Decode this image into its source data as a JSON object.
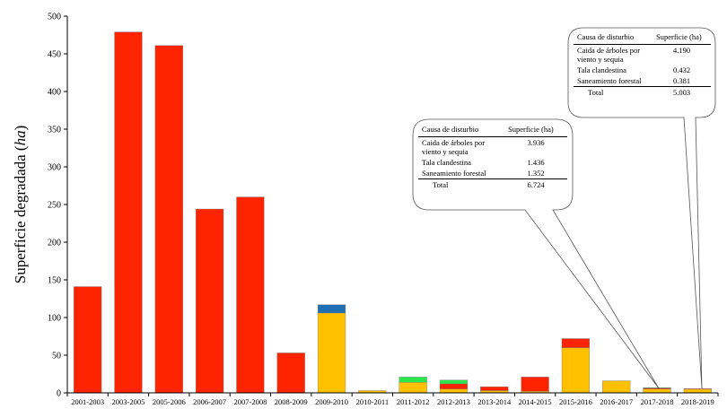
{
  "chart_data": {
    "type": "bar",
    "stacked": true,
    "ylabel": "Superficie degradada (ha)",
    "ylabel_parts": {
      "main": "Superficie degradada ",
      "italic": "ha",
      "open": "(",
      "close": ")"
    },
    "ylim": [
      0,
      500
    ],
    "yticks": [
      "0",
      "50",
      "100",
      "150",
      "200",
      "250",
      "300",
      "350",
      "400",
      "450",
      "500"
    ],
    "categories": [
      "2001-2003",
      "2003-2005",
      "2005-2006",
      "2006-2007",
      "2007-2008",
      "2008-2009",
      "2009-2010",
      "2010-2011",
      "2011-2012",
      "2012-2013",
      "2013-2014",
      "2014-2015",
      "2015-2016",
      "2016-2017",
      "2017-2018",
      "2018-2019"
    ],
    "series": [
      {
        "color": "#FFC000",
        "values": [
          0,
          0,
          0,
          0,
          0,
          0,
          106,
          3,
          14,
          5,
          3,
          2,
          60,
          16,
          5,
          5
        ]
      },
      {
        "color": "#FF2400",
        "values": [
          141,
          479,
          461,
          244,
          260,
          53,
          0,
          0,
          0,
          7,
          5,
          19,
          12,
          0,
          1.5,
          0.5
        ]
      },
      {
        "color": "#2AE84B",
        "values": [
          0,
          0,
          0,
          0,
          0,
          0,
          0,
          0,
          7,
          5,
          0,
          0,
          0,
          0,
          0.5,
          0
        ]
      },
      {
        "color": "#1F6FB4",
        "values": [
          0,
          0,
          0,
          0,
          0,
          0,
          11,
          0,
          0,
          0,
          0,
          0,
          0,
          0,
          0,
          0
        ]
      }
    ],
    "grid": false,
    "legend": "none"
  },
  "callouts": [
    {
      "headers": [
        "Causa de disturbio",
        "Superficie (ha)"
      ],
      "rows": [
        [
          "Caida de árboles por viento y sequia",
          "3.936"
        ],
        [
          "Tala clandestina",
          "1.436"
        ],
        [
          "Saneamiento forestal",
          "1.352"
        ]
      ],
      "total": [
        "Total",
        "6.724"
      ],
      "points_to": "2017-2018"
    },
    {
      "headers": [
        "Causa de disturbio",
        "Superficie (ha)"
      ],
      "rows": [
        [
          "Caida de árboles por viento y sequia",
          "4.190"
        ],
        [
          "Tala clandestina",
          "0.432"
        ],
        [
          "Saneamiento forestal",
          "0.381"
        ]
      ],
      "total": [
        "Total",
        "5.003"
      ],
      "points_to": "2018-2019"
    }
  ]
}
